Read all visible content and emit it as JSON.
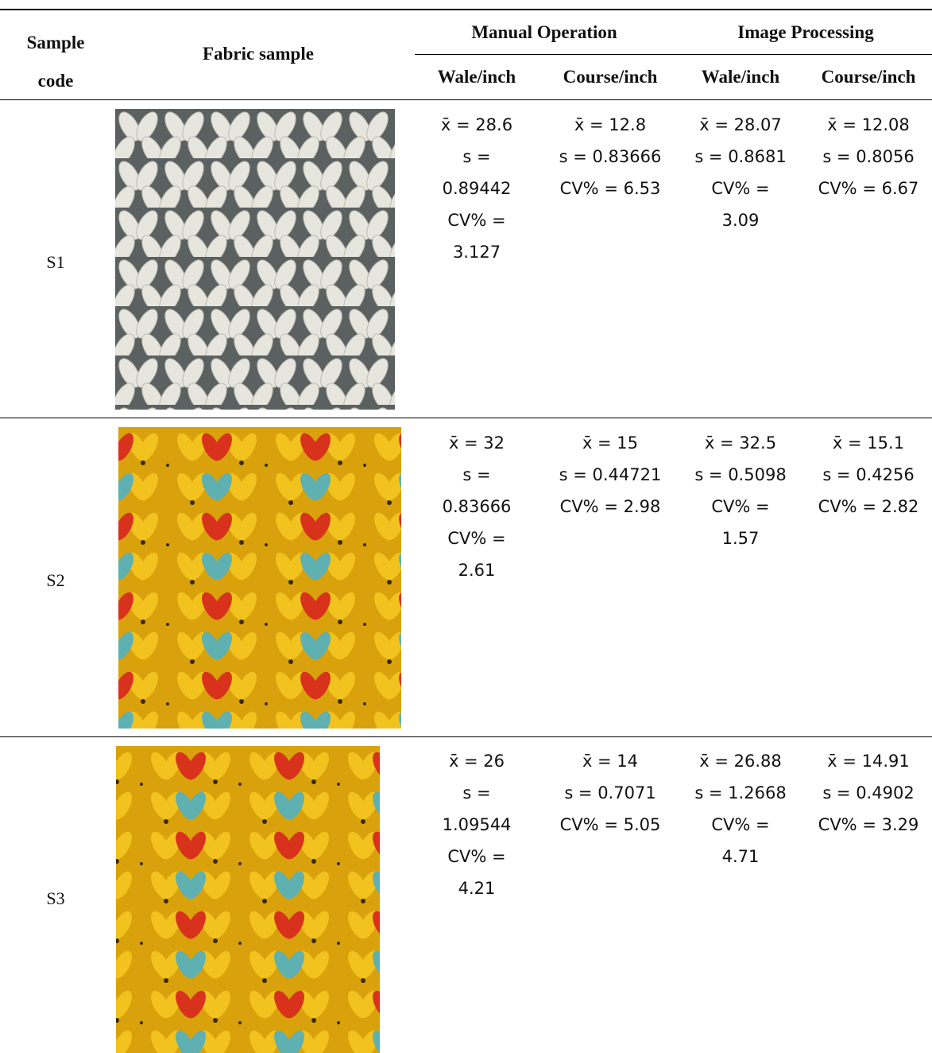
{
  "header": {
    "sample_code": "Sample code",
    "fabric_sample": "Fabric sample",
    "manual_operation": "Manual Operation",
    "image_processing": "Image Processing",
    "columns": [
      "Wale/inch",
      "Course/inch",
      "Wale/inch",
      "Course/inch"
    ]
  },
  "rows": [
    {
      "code": "S1",
      "cells": [
        [
          "x̄ = 28.6",
          "s =",
          "0.89442",
          "CV% =",
          "3.127"
        ],
        [
          "x̄ = 12.8",
          "s = 0.83666",
          "CV% = 6.53"
        ],
        [
          "x̄ = 28.07",
          "s = 0.8681",
          "CV% =",
          "3.09"
        ],
        [
          "x̄ = 12.08",
          "s = 0.8056",
          "CV% = 6.67"
        ]
      ]
    },
    {
      "code": "S2",
      "cells": [
        [
          "x̄ = 32",
          "s =",
          "0.83666",
          "CV% =",
          "2.61"
        ],
        [
          "x̄ = 15",
          "s = 0.44721",
          "CV% = 2.98"
        ],
        [
          "x̄ = 32.5",
          "s = 0.5098",
          "CV% =",
          "1.57"
        ],
        [
          "x̄ = 15.1",
          "s = 0.4256",
          "CV% = 2.82"
        ]
      ]
    },
    {
      "code": "S3",
      "cells": [
        [
          "x̄ = 26",
          "s =",
          "1.09544",
          "CV% =",
          "4.21"
        ],
        [
          "x̄ = 14",
          "s = 0.7071",
          "CV% = 5.05"
        ],
        [
          "x̄ = 26.88",
          "s = 1.2668",
          "CV% =",
          "4.71"
        ],
        [
          "x̄ = 14.91",
          "s = 0.4902",
          "CV% = 3.29"
        ]
      ]
    }
  ]
}
